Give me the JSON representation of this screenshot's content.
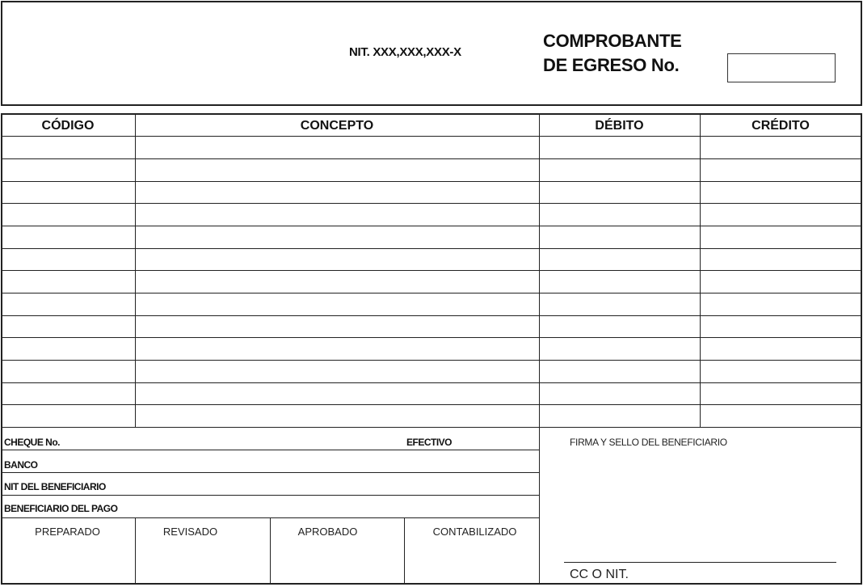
{
  "header": {
    "nit": "NIT. XXX,XXX,XXX-X",
    "title_line1": "COMPROBANTE",
    "title_line2": "DE EGRESO No.",
    "number_value": ""
  },
  "table": {
    "columns": [
      "CÓDIGO",
      "CONCEPTO",
      "DÉBITO",
      "CRÉDITO"
    ]
  },
  "payment": {
    "cheque_label": "CHEQUE No.",
    "efectivo_label": "EFECTIVO",
    "banco_label": "BANCO",
    "nit_beneficiario_label": "NIT DEL BENEFICIARIO",
    "beneficiario_label": "BENEFICIARIO DEL PAGO"
  },
  "signatures": [
    "PREPARADO",
    "REVISADO",
    "APROBADO",
    "CONTABILIZADO"
  ],
  "beneficiary": {
    "firma_label": "FIRMA Y SELLO DEL BENEFICIARIO",
    "cc_label": "CC O NIT."
  }
}
